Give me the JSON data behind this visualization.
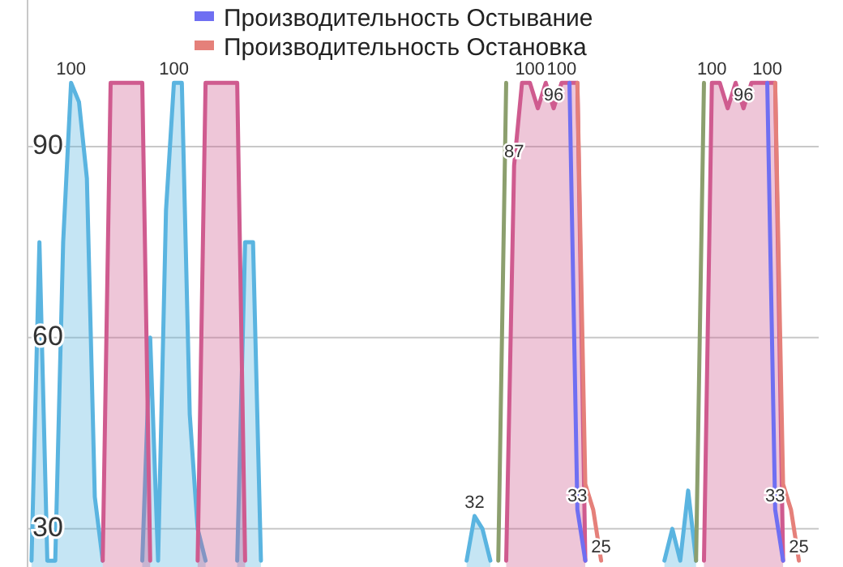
{
  "chart_data": {
    "type": "area",
    "categories": [
      null,
      null,
      null,
      null,
      null,
      null,
      null,
      null,
      null,
      null,
      null,
      null,
      null,
      null,
      null,
      null,
      null,
      null,
      null,
      null,
      null,
      null,
      null,
      null,
      null,
      null,
      null,
      null,
      null,
      null,
      null,
      null,
      null,
      null,
      null,
      null,
      null,
      null,
      null,
      null,
      null,
      null,
      null,
      null,
      null,
      null,
      null,
      null,
      null,
      null,
      null,
      null,
      null,
      null,
      null,
      null,
      null,
      null,
      null,
      null,
      null,
      null,
      null,
      null,
      null,
      null,
      null,
      null,
      null,
      null,
      null,
      null,
      null,
      null,
      null,
      null,
      null,
      null,
      null,
      null,
      null,
      null,
      null,
      null,
      null,
      null,
      null,
      null,
      null,
      null,
      null,
      null,
      null,
      null,
      null,
      null,
      null,
      null,
      null,
      null
    ],
    "ylim": [
      24,
      113
    ],
    "yticks": [
      30,
      60,
      90
    ],
    "grid": "y",
    "legend": "top",
    "series": [
      {
        "type": "area",
        "color": "#5ab4e0",
        "values": [
          25,
          75,
          25,
          25,
          75,
          100,
          97,
          85,
          35,
          25,
          null,
          null,
          null,
          null,
          25,
          60,
          25,
          80,
          100,
          100,
          48,
          30,
          25,
          null,
          null,
          null,
          25,
          75,
          75,
          25,
          null,
          null,
          null,
          null,
          null,
          null,
          null,
          null,
          null,
          null,
          null,
          null,
          null,
          null,
          null,
          null,
          null,
          null,
          null,
          null,
          null,
          null,
          null,
          null,
          null,
          25,
          32,
          30,
          25,
          null,
          null,
          null,
          null,
          null,
          null,
          null,
          null,
          null,
          null,
          null,
          null,
          null,
          null,
          null,
          null,
          null,
          null,
          null,
          null,
          null,
          25,
          30,
          25,
          36,
          25,
          null,
          null,
          null,
          null,
          null,
          null,
          null,
          null,
          null,
          null,
          null,
          null,
          null,
          null,
          null
        ],
        "value_labels": [
          null,
          null,
          null,
          null,
          null,
          "100",
          null,
          null,
          null,
          null,
          null,
          null,
          null,
          null,
          null,
          null,
          null,
          null,
          "100",
          null,
          null,
          null,
          null,
          null,
          null,
          null,
          null,
          null,
          null,
          null,
          null,
          null,
          null,
          null,
          null,
          null,
          null,
          null,
          null,
          null,
          null,
          null,
          null,
          null,
          null,
          null,
          null,
          null,
          null,
          null,
          null,
          null,
          null,
          null,
          null,
          null,
          "32",
          null,
          null,
          null,
          null,
          null,
          null,
          null,
          null,
          null,
          null,
          null,
          null,
          null,
          null,
          null,
          null,
          null,
          null,
          null,
          null,
          null,
          null,
          null,
          null,
          null,
          null,
          null,
          null,
          null,
          null,
          null,
          null,
          null,
          null,
          null,
          null,
          null,
          null,
          null,
          null,
          null,
          null,
          null
        ]
      },
      {
        "type": "area",
        "color": "#cf5b8f",
        "values": [
          null,
          null,
          null,
          null,
          null,
          null,
          null,
          null,
          null,
          25,
          100,
          100,
          100,
          100,
          100,
          25,
          null,
          null,
          null,
          null,
          null,
          25,
          100,
          100,
          100,
          100,
          100,
          25,
          null,
          null,
          null,
          null,
          null,
          null,
          null,
          null,
          null,
          null,
          null,
          null,
          null,
          null,
          null,
          null,
          null,
          null,
          null,
          null,
          null,
          null,
          null,
          null,
          null,
          null,
          null,
          null,
          null,
          null,
          null,
          null,
          25,
          87,
          100,
          100,
          96,
          100,
          96,
          100,
          100,
          100,
          25,
          null,
          null,
          null,
          null,
          null,
          null,
          null,
          null,
          null,
          null,
          null,
          null,
          null,
          null,
          25,
          100,
          100,
          96,
          100,
          96,
          100,
          100,
          100,
          100,
          25,
          null,
          null,
          null,
          null
        ],
        "value_labels": [
          null,
          null,
          null,
          null,
          null,
          null,
          null,
          null,
          null,
          null,
          null,
          null,
          null,
          null,
          null,
          null,
          null,
          null,
          null,
          null,
          null,
          null,
          null,
          null,
          null,
          null,
          null,
          null,
          null,
          null,
          null,
          null,
          null,
          null,
          null,
          null,
          null,
          null,
          null,
          null,
          null,
          null,
          null,
          null,
          null,
          null,
          null,
          null,
          null,
          null,
          null,
          null,
          null,
          null,
          null,
          null,
          null,
          null,
          null,
          null,
          null,
          "87",
          null,
          "100",
          null,
          null,
          "96",
          "100",
          null,
          null,
          null,
          null,
          null,
          null,
          null,
          null,
          null,
          null,
          null,
          null,
          null,
          null,
          null,
          null,
          null,
          null,
          "100",
          null,
          null,
          null,
          "96",
          null,
          null,
          "100",
          null,
          null,
          null,
          null,
          null,
          null
        ]
      },
      {
        "type": "line",
        "color": "#8c9f6e",
        "values": [
          null,
          null,
          null,
          null,
          null,
          null,
          null,
          null,
          null,
          null,
          null,
          null,
          null,
          null,
          null,
          null,
          null,
          null,
          null,
          null,
          null,
          null,
          null,
          null,
          null,
          null,
          null,
          null,
          null,
          null,
          null,
          null,
          null,
          null,
          null,
          null,
          null,
          null,
          null,
          null,
          null,
          null,
          null,
          null,
          null,
          null,
          null,
          null,
          null,
          null,
          null,
          null,
          null,
          null,
          null,
          null,
          null,
          null,
          null,
          25,
          100,
          null,
          null,
          null,
          null,
          null,
          null,
          null,
          null,
          null,
          null,
          null,
          null,
          null,
          null,
          null,
          null,
          null,
          null,
          null,
          null,
          null,
          null,
          null,
          25,
          100,
          null,
          null,
          null,
          null,
          null,
          null,
          null,
          null,
          null,
          null,
          null,
          null,
          null,
          null
        ]
      },
      {
        "type": "line",
        "name": "Производительность Остывание",
        "color": "#6f6ff2",
        "values": [
          null,
          null,
          null,
          null,
          null,
          null,
          null,
          null,
          null,
          null,
          null,
          null,
          null,
          null,
          null,
          null,
          null,
          null,
          null,
          null,
          null,
          null,
          null,
          null,
          null,
          null,
          null,
          null,
          null,
          null,
          null,
          null,
          null,
          null,
          null,
          null,
          null,
          null,
          null,
          null,
          null,
          null,
          null,
          null,
          null,
          null,
          null,
          null,
          null,
          null,
          null,
          null,
          null,
          null,
          null,
          null,
          null,
          null,
          null,
          null,
          null,
          null,
          null,
          null,
          null,
          null,
          null,
          null,
          100,
          33,
          25,
          null,
          null,
          null,
          null,
          null,
          null,
          null,
          null,
          null,
          null,
          null,
          null,
          null,
          null,
          null,
          null,
          null,
          null,
          null,
          null,
          null,
          null,
          100,
          33,
          25,
          null,
          null,
          null,
          null
        ],
        "value_labels": [
          null,
          null,
          null,
          null,
          null,
          null,
          null,
          null,
          null,
          null,
          null,
          null,
          null,
          null,
          null,
          null,
          null,
          null,
          null,
          null,
          null,
          null,
          null,
          null,
          null,
          null,
          null,
          null,
          null,
          null,
          null,
          null,
          null,
          null,
          null,
          null,
          null,
          null,
          null,
          null,
          null,
          null,
          null,
          null,
          null,
          null,
          null,
          null,
          null,
          null,
          null,
          null,
          null,
          null,
          null,
          null,
          null,
          null,
          null,
          null,
          null,
          null,
          null,
          null,
          null,
          null,
          null,
          null,
          null,
          "33",
          null,
          null,
          null,
          null,
          null,
          null,
          null,
          null,
          null,
          null,
          null,
          null,
          null,
          null,
          null,
          null,
          null,
          null,
          null,
          null,
          null,
          null,
          null,
          null,
          "33",
          null,
          null,
          null,
          null,
          null
        ]
      },
      {
        "type": "line",
        "name": "Производительность Остановка",
        "color": "#e5807a",
        "values": [
          null,
          null,
          null,
          null,
          null,
          null,
          null,
          null,
          null,
          null,
          null,
          null,
          null,
          null,
          null,
          null,
          null,
          null,
          null,
          null,
          null,
          null,
          null,
          null,
          null,
          null,
          null,
          null,
          null,
          null,
          null,
          null,
          null,
          null,
          null,
          null,
          null,
          null,
          null,
          null,
          null,
          null,
          null,
          null,
          null,
          null,
          null,
          null,
          null,
          null,
          null,
          null,
          null,
          null,
          null,
          null,
          null,
          null,
          null,
          null,
          null,
          null,
          null,
          null,
          null,
          null,
          null,
          null,
          null,
          100,
          37,
          33,
          25,
          null,
          null,
          null,
          null,
          null,
          null,
          null,
          null,
          null,
          null,
          null,
          null,
          null,
          null,
          null,
          null,
          null,
          null,
          null,
          null,
          null,
          100,
          37,
          33,
          25,
          null,
          null
        ],
        "value_labels": [
          null,
          null,
          null,
          null,
          null,
          null,
          null,
          null,
          null,
          null,
          null,
          null,
          null,
          null,
          null,
          null,
          null,
          null,
          null,
          null,
          null,
          null,
          null,
          null,
          null,
          null,
          null,
          null,
          null,
          null,
          null,
          null,
          null,
          null,
          null,
          null,
          null,
          null,
          null,
          null,
          null,
          null,
          null,
          null,
          null,
          null,
          null,
          null,
          null,
          null,
          null,
          null,
          null,
          null,
          null,
          null,
          null,
          null,
          null,
          null,
          null,
          null,
          null,
          null,
          null,
          null,
          null,
          null,
          null,
          null,
          null,
          null,
          "25",
          null,
          null,
          null,
          null,
          null,
          null,
          null,
          null,
          null,
          null,
          null,
          null,
          null,
          null,
          null,
          null,
          null,
          null,
          null,
          null,
          null,
          null,
          null,
          null,
          "25",
          null,
          null
        ]
      }
    ]
  }
}
